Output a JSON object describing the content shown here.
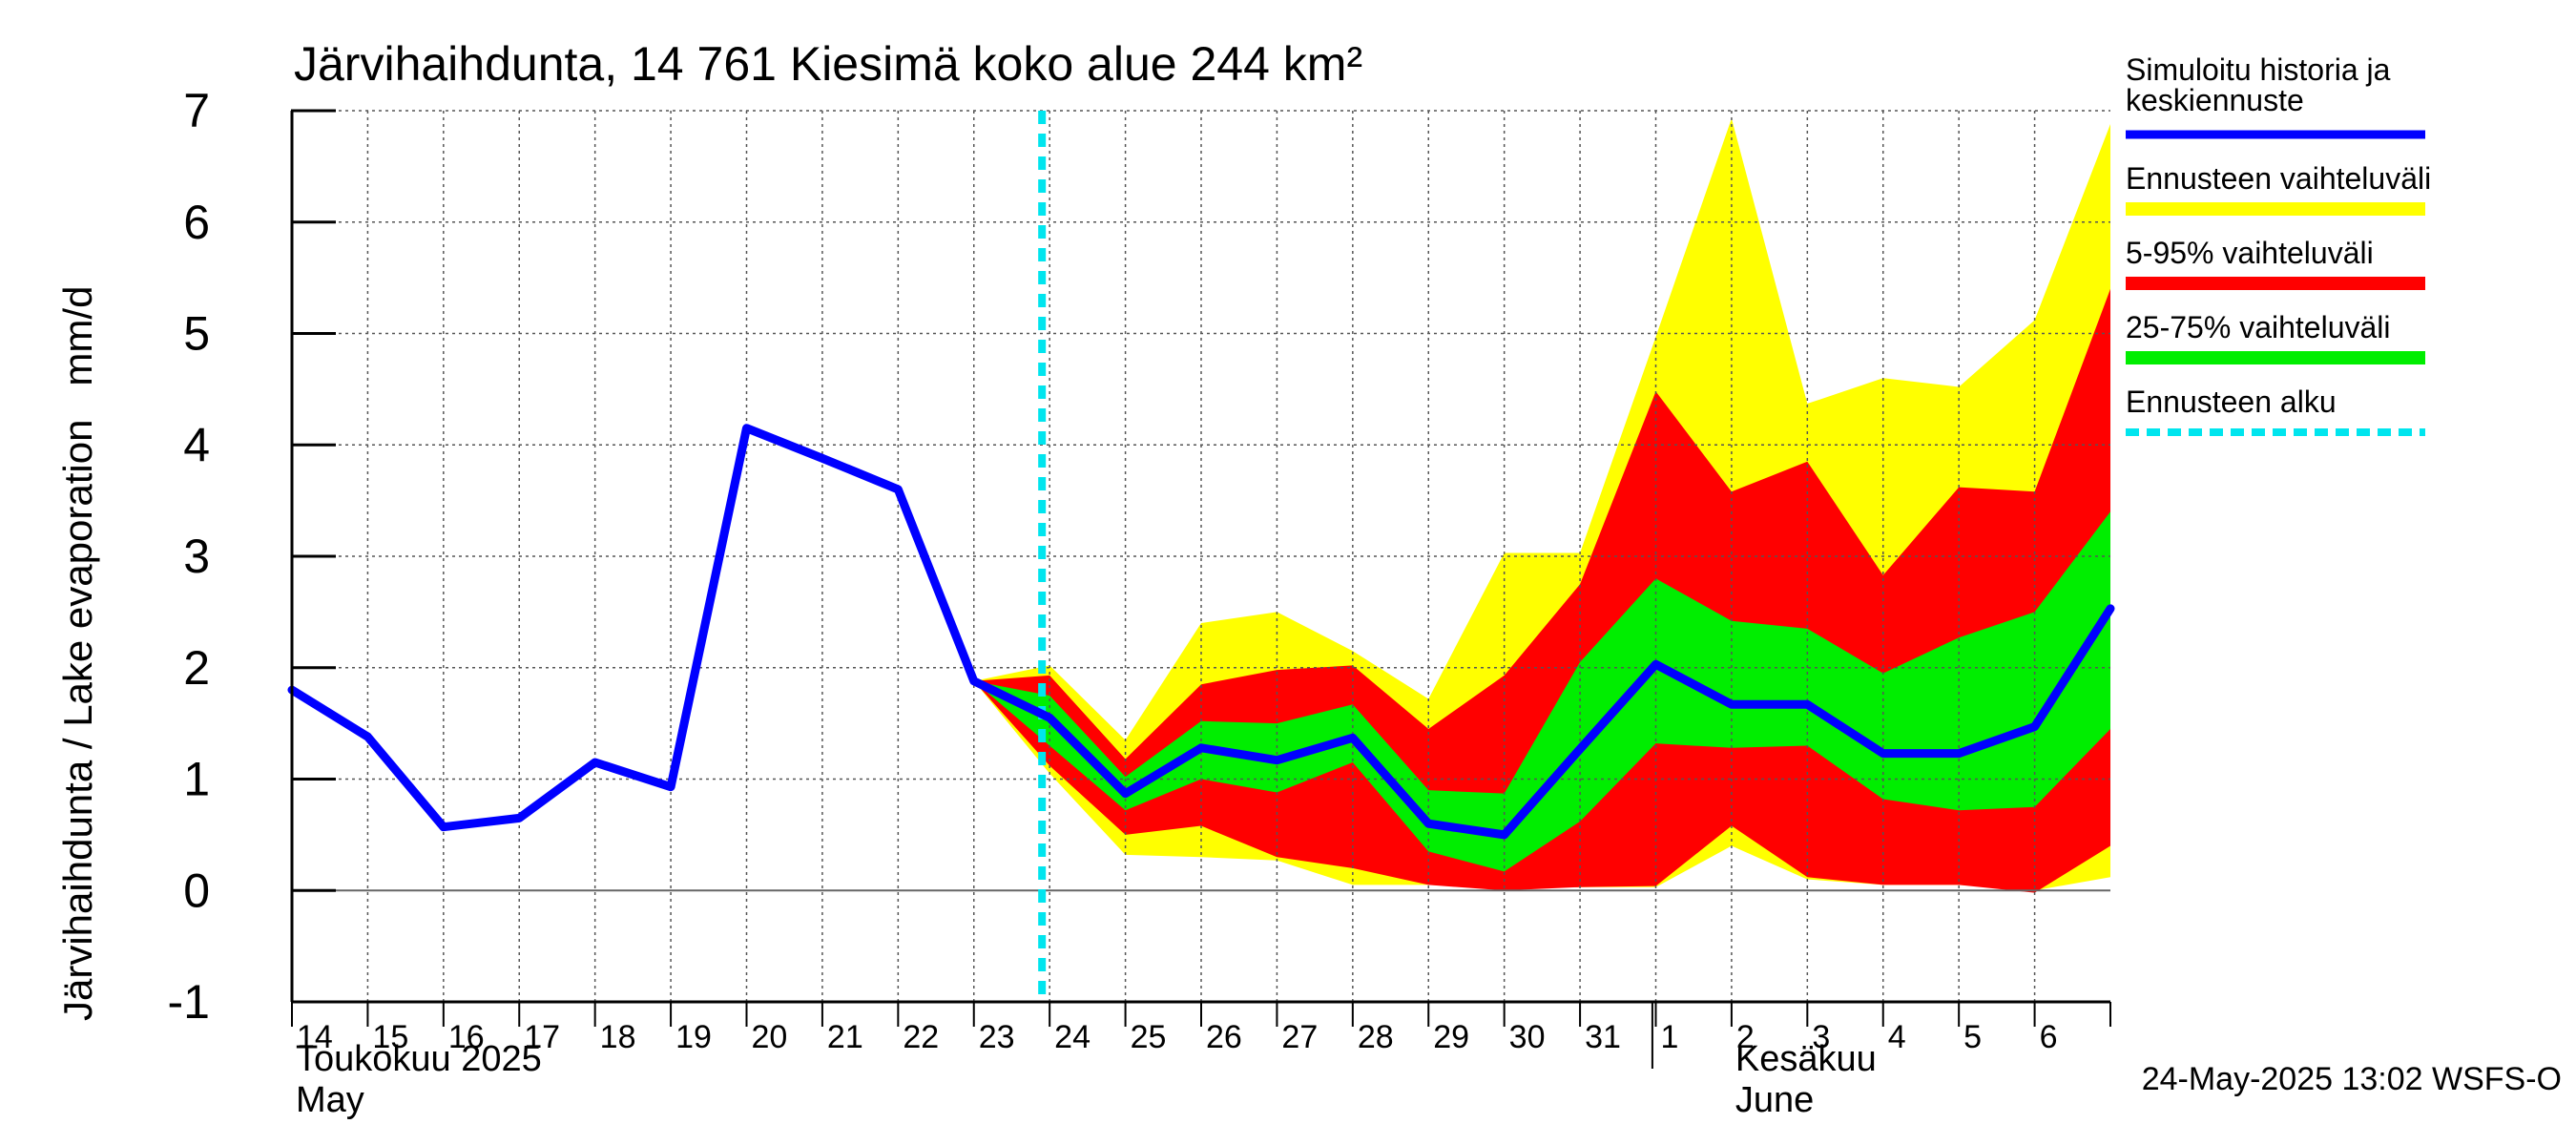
{
  "chart_data": {
    "type": "area",
    "title": "Järvihaihdunta, 14 761 Kiesimä koko alue 244 km²",
    "ylabel": "Järvihaihdunta / Lake evaporation   mm/d",
    "ylim": [
      -1,
      7
    ],
    "yticks": [
      -1,
      0,
      1,
      2,
      3,
      4,
      5,
      6,
      7
    ],
    "x_start": "2025-05-14",
    "x_end": "2025-06-07",
    "xtick_labels": [
      "14",
      "15",
      "16",
      "17",
      "18",
      "19",
      "20",
      "21",
      "22",
      "23",
      "24",
      "25",
      "26",
      "27",
      "28",
      "29",
      "30",
      "31",
      "1",
      "2",
      "3",
      "4",
      "5",
      "6"
    ],
    "month_labels": [
      {
        "line1": "Toukokuu  2025",
        "line2": "May",
        "date": "2025-05-14"
      },
      {
        "line1": "Kesäkuu",
        "line2": "June",
        "date": "2025-06-02"
      }
    ],
    "forecast_start": "2025-05-24",
    "grid": true,
    "legend_placement": "right",
    "series": [
      {
        "name": "Simuloitu historia ja keskiennuste",
        "kind": "line",
        "color": "#0000ff",
        "x": [
          "2025-05-14",
          "2025-05-15",
          "2025-05-16",
          "2025-05-17",
          "2025-05-18",
          "2025-05-19",
          "2025-05-20",
          "2025-05-21",
          "2025-05-22",
          "2025-05-23",
          "2025-05-24",
          "2025-05-25",
          "2025-05-26",
          "2025-05-27",
          "2025-05-28",
          "2025-05-29",
          "2025-05-30",
          "2025-05-31",
          "2025-06-01",
          "2025-06-02",
          "2025-06-03",
          "2025-06-04",
          "2025-06-05",
          "2025-06-06",
          "2025-06-07"
        ],
        "y": [
          1.8,
          1.38,
          0.57,
          0.65,
          1.15,
          0.93,
          4.15,
          3.88,
          3.6,
          1.88,
          1.55,
          0.87,
          1.28,
          1.17,
          1.37,
          0.6,
          0.5,
          1.27,
          2.03,
          1.67,
          1.67,
          1.23,
          1.23,
          1.47,
          2.53
        ]
      },
      {
        "name": "Ennusteen vaihteluväli",
        "kind": "band",
        "color": "#ffff00",
        "x": [
          "2025-05-23",
          "2025-05-24",
          "2025-05-25",
          "2025-05-26",
          "2025-05-27",
          "2025-05-28",
          "2025-05-29",
          "2025-05-30",
          "2025-05-31",
          "2025-06-01",
          "2025-06-02",
          "2025-06-03",
          "2025-06-04",
          "2025-06-05",
          "2025-06-06",
          "2025-06-07"
        ],
        "upper": [
          1.88,
          2.02,
          1.35,
          2.4,
          2.5,
          2.15,
          1.72,
          3.03,
          3.03,
          4.97,
          6.93,
          4.37,
          4.6,
          4.52,
          5.12,
          6.88
        ],
        "lower": [
          1.88,
          1.05,
          0.32,
          0.3,
          0.27,
          0.05,
          0.05,
          0.02,
          0.03,
          0.03,
          0.4,
          0.1,
          0.05,
          0.05,
          0.0,
          0.12
        ]
      },
      {
        "name": "5-95% vaihteluväli",
        "kind": "band",
        "color": "#ff0000",
        "x": [
          "2025-05-23",
          "2025-05-24",
          "2025-05-25",
          "2025-05-26",
          "2025-05-27",
          "2025-05-28",
          "2025-05-29",
          "2025-05-30",
          "2025-05-31",
          "2025-06-01",
          "2025-06-02",
          "2025-06-03",
          "2025-06-04",
          "2025-06-05",
          "2025-06-06",
          "2025-06-07"
        ],
        "upper": [
          1.88,
          1.93,
          1.18,
          1.85,
          1.98,
          2.02,
          1.45,
          1.93,
          2.75,
          4.48,
          3.58,
          3.85,
          2.83,
          3.62,
          3.58,
          5.4
        ],
        "lower": [
          1.88,
          1.12,
          0.5,
          0.58,
          0.3,
          0.2,
          0.05,
          0.0,
          0.03,
          0.04,
          0.58,
          0.12,
          0.05,
          0.05,
          -0.02,
          0.4
        ]
      },
      {
        "name": "25-75% vaihteluväli",
        "kind": "band",
        "color": "#00ee00",
        "x": [
          "2025-05-23",
          "2025-05-24",
          "2025-05-25",
          "2025-05-26",
          "2025-05-27",
          "2025-05-28",
          "2025-05-29",
          "2025-05-30",
          "2025-05-31",
          "2025-06-01",
          "2025-06-02",
          "2025-06-03",
          "2025-06-04",
          "2025-06-05",
          "2025-06-06",
          "2025-06-07"
        ],
        "upper": [
          1.88,
          1.75,
          1.02,
          1.52,
          1.5,
          1.67,
          0.9,
          0.87,
          2.05,
          2.8,
          2.42,
          2.35,
          1.95,
          2.27,
          2.5,
          3.4
        ],
        "lower": [
          1.88,
          1.3,
          0.72,
          1.0,
          0.88,
          1.15,
          0.35,
          0.17,
          0.62,
          1.32,
          1.28,
          1.3,
          0.82,
          0.72,
          0.75,
          1.45
        ]
      },
      {
        "name": "Ennusteen alku",
        "kind": "vline",
        "color": "#00e5ee",
        "x": "2025-05-24"
      }
    ],
    "footer": "24-May-2025 13:02 WSFS-O"
  }
}
